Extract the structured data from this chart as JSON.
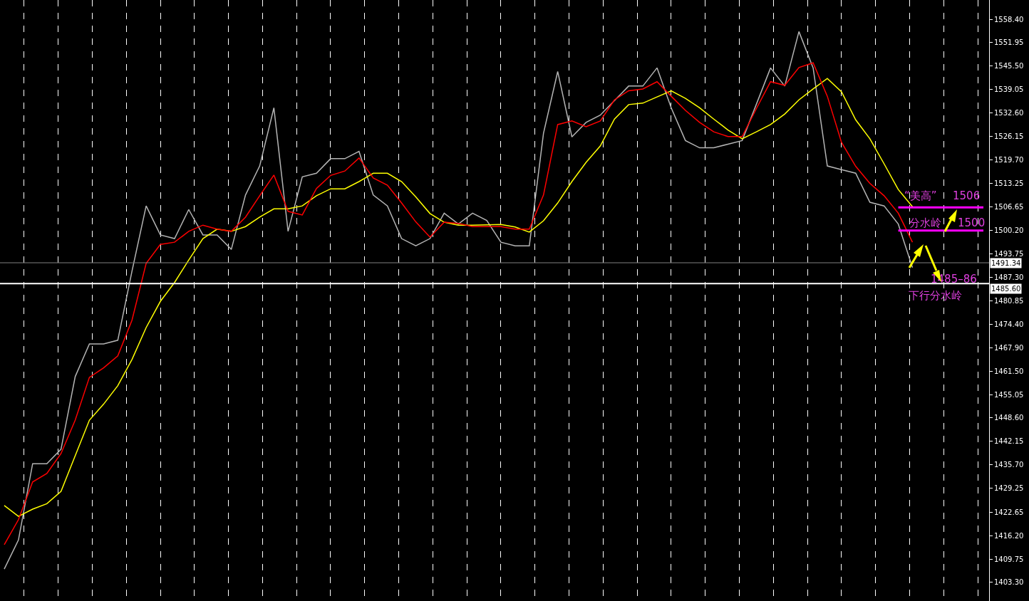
{
  "chart_data": {
    "type": "line",
    "tick_labels": "y",
    "grid": "x",
    "categories": [
      null,
      null,
      null,
      null,
      null,
      null,
      null,
      null,
      null,
      null,
      null,
      null,
      null,
      null,
      null,
      null,
      null,
      null,
      null,
      null,
      null,
      null,
      null,
      null,
      null,
      null,
      null,
      null,
      null,
      null,
      null,
      null,
      null,
      null,
      null,
      null,
      null,
      null,
      null,
      null,
      null,
      null,
      null,
      null,
      null,
      null,
      null,
      null,
      null,
      null,
      null,
      null,
      null,
      null,
      null,
      null,
      null,
      null,
      null,
      null,
      null,
      null,
      null,
      null,
      null,
      null,
      null,
      null,
      null,
      null
    ],
    "ylim": [
      1398.2,
      1563.7
    ],
    "yticks": [
      {
        "value": 1403.3,
        "label": "1403.30"
      },
      {
        "value": 1409.75,
        "label": "1409.75"
      },
      {
        "value": 1416.2,
        "label": "1416.20"
      },
      {
        "value": 1422.65,
        "label": "1422.65"
      },
      {
        "value": 1429.25,
        "label": "1429.25"
      },
      {
        "value": 1435.7,
        "label": "1435.70"
      },
      {
        "value": 1442.15,
        "label": "1442.15"
      },
      {
        "value": 1448.6,
        "label": "1448.60"
      },
      {
        "value": 1455.05,
        "label": "1455.05"
      },
      {
        "value": 1461.5,
        "label": "1461.50"
      },
      {
        "value": 1467.9,
        "label": "1467.90"
      },
      {
        "value": 1474.4,
        "label": "1474.40"
      },
      {
        "value": 1480.85,
        "label": "1480.85"
      },
      {
        "value": 1487.3,
        "label": "1487.30"
      },
      {
        "value": 1493.75,
        "label": "1493.75"
      },
      {
        "value": 1500.2,
        "label": "1500.20"
      },
      {
        "value": 1506.65,
        "label": "1506.65"
      },
      {
        "value": 1513.25,
        "label": "1513.25"
      },
      {
        "value": 1519.7,
        "label": "1519.70"
      },
      {
        "value": 1526.15,
        "label": "1526.15"
      },
      {
        "value": 1532.6,
        "label": "1532.60"
      },
      {
        "value": 1539.05,
        "label": "1539.05"
      },
      {
        "value": 1545.5,
        "label": "1545.50"
      },
      {
        "value": 1551.95,
        "label": "1551.95"
      },
      {
        "value": 1558.4,
        "label": "1558.40"
      }
    ],
    "series": [
      {
        "color": "#b4b4b4",
        "values": [
          1407,
          1415,
          1436,
          1436,
          1440,
          1460,
          1469,
          1469,
          1470,
          1489,
          1507,
          1499,
          1498,
          1506,
          1499,
          1499,
          1495,
          1510,
          1518,
          1534,
          1500,
          1515,
          1516,
          1520,
          1520,
          1522,
          1510,
          1507,
          1498,
          1496,
          1498,
          1505,
          1502,
          1505,
          1503,
          1497,
          1496,
          1496,
          1527,
          1544,
          1526,
          1530,
          1532,
          1536,
          1540,
          1540,
          1545,
          1534,
          1525,
          1523,
          1523,
          1524,
          1525,
          1535,
          1545,
          1540,
          1555,
          1545,
          1518,
          1517,
          1516,
          1508,
          1507,
          1502,
          1490,
          null,
          null,
          null,
          null,
          null
        ]
      },
      {
        "color": "#ffff00",
        "values": [
          1424.5,
          1421.5,
          1423.5,
          1425.0,
          1428.4,
          1438.2,
          1448.0,
          1452.4,
          1457.5,
          1464.7,
          1473.5,
          1480.7,
          1485.9,
          1492.1,
          1498.0,
          1500.6,
          1500.0,
          1501.3,
          1503.9,
          1506.2,
          1506.2,
          1507.0,
          1509.8,
          1511.7,
          1511.7,
          1513.7,
          1516.0,
          1516.0,
          1513.7,
          1509.5,
          1504.9,
          1502.5,
          1501.7,
          1501.7,
          1501.8,
          1501.9,
          1501.2,
          1499.8,
          1502.9,
          1507.8,
          1513.7,
          1519.0,
          1523.5,
          1530.9,
          1534.9,
          1535.3,
          1537.0,
          1538.7,
          1536.6,
          1534.0,
          1530.9,
          1527.9,
          1525.5,
          1527.4,
          1529.4,
          1532.3,
          1536.2,
          1539.2,
          1542.1,
          1538.4,
          1530.7,
          1525.5,
          1518.6,
          1511.5,
          1506.8,
          null,
          null,
          null,
          null,
          null
        ]
      },
      {
        "color": "#ff0000",
        "values": [
          1413.7,
          1420.6,
          1431.0,
          1433.3,
          1438.8,
          1448.0,
          1459.8,
          1462.4,
          1465.7,
          1475.5,
          1491.2,
          1496.4,
          1497.0,
          1500.0,
          1501.7,
          1500.6,
          1500.0,
          1503.9,
          1509.8,
          1515.5,
          1505.5,
          1504.5,
          1511.8,
          1515.4,
          1516.6,
          1520.2,
          1514.7,
          1512.7,
          1507.8,
          1502.6,
          1498.4,
          1502.5,
          1502.2,
          1501.3,
          1501.3,
          1501.3,
          1500.6,
          1500.6,
          1510.0,
          1529.4,
          1530.4,
          1528.8,
          1530.4,
          1536.2,
          1538.7,
          1539.2,
          1541.2,
          1537.2,
          1533.3,
          1530.0,
          1527.4,
          1526.1,
          1526.1,
          1533.8,
          1541.2,
          1540.2,
          1545.1,
          1546.4,
          1537.2,
          1524.5,
          1517.9,
          1513.2,
          1509.8,
          1505.0,
          1497.0,
          null,
          null,
          null,
          null,
          null
        ]
      },
      {
        "color": "#ff00ff",
        "values": [
          null,
          null,
          null,
          null,
          null,
          null,
          null,
          null,
          null,
          null,
          null,
          null,
          null,
          null,
          null,
          null,
          null,
          null,
          null,
          null,
          null,
          null,
          null,
          null,
          null,
          null,
          null,
          null,
          null,
          null,
          null,
          null,
          null,
          null,
          null,
          null,
          null,
          null,
          null,
          null,
          null,
          null,
          null,
          null,
          null,
          null,
          null,
          null,
          null,
          null,
          null,
          null,
          null,
          null,
          null,
          null,
          null,
          null,
          null,
          null,
          null,
          null,
          null,
          1506.6,
          1506.6,
          1506.6,
          1506.6,
          1506.6,
          1506.6,
          1506.6
        ]
      },
      {
        "color": "#ff00ff",
        "values": [
          null,
          null,
          null,
          null,
          null,
          null,
          null,
          null,
          null,
          null,
          null,
          null,
          null,
          null,
          null,
          null,
          null,
          null,
          null,
          null,
          null,
          null,
          null,
          null,
          null,
          null,
          null,
          null,
          null,
          null,
          null,
          null,
          null,
          null,
          null,
          null,
          null,
          null,
          null,
          null,
          null,
          null,
          null,
          null,
          null,
          null,
          null,
          null,
          null,
          null,
          null,
          null,
          null,
          null,
          null,
          null,
          null,
          null,
          null,
          null,
          null,
          null,
          null,
          1500.2,
          1500.2,
          1500.2,
          1500.2,
          1500.2,
          1500.2,
          1500.2
        ]
      }
    ],
    "ref_lines": [
      {
        "axis": "y",
        "value": 1491.34,
        "label": "1491.34",
        "color": "#808080"
      },
      {
        "axis": "y",
        "value": 1485.6,
        "label": "1485.60",
        "color": "#ffffff"
      }
    ],
    "annotations": [
      "“美高”",
      "1506",
      "分水岭",
      "1500",
      "1485–86",
      "下行分水岭"
    ]
  }
}
